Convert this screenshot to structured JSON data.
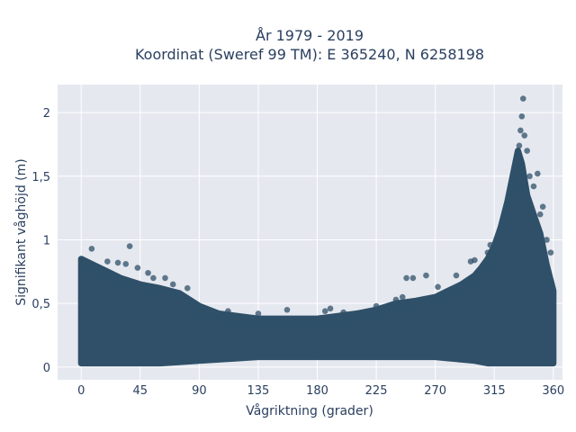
{
  "chart_data": {
    "type": "scatter",
    "title": "År 1979 - 2019",
    "subtitle": "Koordinat (Sweref 99 TM): E 365240, N 6258198",
    "xlabel": "Vågriktning (grader)",
    "ylabel": "Signifikant våghöjd (m)",
    "xlim": [
      -18,
      367
    ],
    "ylim": [
      -0.1,
      2.22
    ],
    "xticks": [
      0,
      45,
      90,
      135,
      180,
      225,
      270,
      315,
      360
    ],
    "xtick_labels": [
      "0",
      "45",
      "90",
      "135",
      "180",
      "225",
      "270",
      "315",
      "360"
    ],
    "yticks": [
      0,
      0.5,
      1,
      1.5,
      2
    ],
    "ytick_labels": [
      "0",
      "0,5",
      "1",
      "1,5",
      "2"
    ],
    "grid": true,
    "legend": "none",
    "colors": {
      "marker": "#2f5068",
      "plot_bg": "#e5e8ef",
      "grid": "#ffffff",
      "text": "#2a3f5f"
    },
    "envelope": {
      "x": [
        0,
        10,
        20,
        30,
        45,
        60,
        75,
        90,
        105,
        120,
        135,
        150,
        165,
        180,
        195,
        210,
        225,
        240,
        255,
        270,
        280,
        290,
        300,
        305,
        310,
        315,
        320,
        325,
        330,
        333,
        336,
        340,
        345,
        350,
        355,
        360
      ],
      "y_max": [
        0.85,
        0.8,
        0.75,
        0.7,
        0.65,
        0.62,
        0.58,
        0.48,
        0.42,
        0.4,
        0.38,
        0.38,
        0.38,
        0.38,
        0.4,
        0.42,
        0.45,
        0.5,
        0.52,
        0.55,
        0.6,
        0.65,
        0.72,
        0.78,
        0.85,
        0.95,
        1.1,
        1.3,
        1.55,
        1.7,
        1.6,
        1.35,
        1.2,
        1.05,
        0.8,
        0.6
      ],
      "y_min": [
        0.03,
        0.03,
        0.03,
        0.03,
        0.03,
        0.03,
        0.04,
        0.05,
        0.06,
        0.07,
        0.08,
        0.08,
        0.08,
        0.08,
        0.08,
        0.08,
        0.08,
        0.08,
        0.08,
        0.08,
        0.07,
        0.06,
        0.05,
        0.04,
        0.03,
        0.03,
        0.03,
        0.03,
        0.03,
        0.03,
        0.03,
        0.03,
        0.03,
        0.03,
        0.03,
        0.03
      ]
    },
    "points": [
      [
        8,
        0.93
      ],
      [
        37,
        0.95
      ],
      [
        20,
        0.83
      ],
      [
        28,
        0.82
      ],
      [
        34,
        0.81
      ],
      [
        43,
        0.78
      ],
      [
        51,
        0.74
      ],
      [
        55,
        0.7
      ],
      [
        64,
        0.7
      ],
      [
        70,
        0.65
      ],
      [
        81,
        0.62
      ],
      [
        92,
        0.47
      ],
      [
        200,
        0.43
      ],
      [
        245,
        0.55
      ],
      [
        248,
        0.7
      ],
      [
        253,
        0.7
      ],
      [
        263,
        0.72
      ],
      [
        272,
        0.63
      ],
      [
        286,
        0.72
      ],
      [
        293,
        0.6
      ],
      [
        297,
        0.83
      ],
      [
        300,
        0.84
      ],
      [
        310,
        0.9
      ],
      [
        312,
        0.96
      ],
      [
        320,
        1.07
      ],
      [
        323,
        1.12
      ],
      [
        327,
        1.3
      ],
      [
        330,
        1.45
      ],
      [
        332,
        1.62
      ],
      [
        334,
        1.74
      ],
      [
        335,
        1.86
      ],
      [
        336,
        1.97
      ],
      [
        337,
        2.11
      ],
      [
        338,
        1.82
      ],
      [
        340,
        1.7
      ],
      [
        342,
        1.5
      ],
      [
        345,
        1.42
      ],
      [
        348,
        1.52
      ],
      [
        350,
        1.2
      ],
      [
        352,
        1.26
      ],
      [
        355,
        1.0
      ],
      [
        358,
        0.9
      ],
      [
        186,
        0.44
      ],
      [
        190,
        0.46
      ],
      [
        157,
        0.45
      ],
      [
        233,
        0.47
      ],
      [
        240,
        0.53
      ],
      [
        225,
        0.48
      ],
      [
        135,
        0.42
      ],
      [
        112,
        0.44
      ]
    ]
  }
}
